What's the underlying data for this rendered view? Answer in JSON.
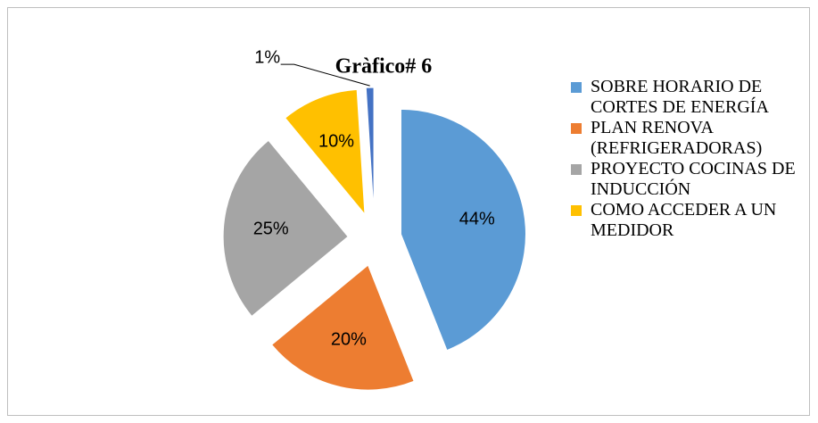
{
  "chart_data": {
    "type": "pie",
    "title": "Gràfico# 6",
    "categories": [
      "SOBRE HORARIO DE CORTES DE ENERGÍA",
      "PLAN RENOVA (REFRIGERADORAS)",
      "PROYECTO COCINAS DE INDUCCIÓN",
      "COMO ACCEDER A UN MEDIDOR",
      null
    ],
    "values": [
      44,
      20,
      25,
      10,
      1
    ],
    "value_labels": [
      "44%",
      "20%",
      "25%",
      "10%",
      "1%"
    ],
    "colors": [
      "#5b9bd5",
      "#ed7d31",
      "#a5a5a5",
      "#ffc000",
      "#4472c4"
    ],
    "legend": "right"
  }
}
